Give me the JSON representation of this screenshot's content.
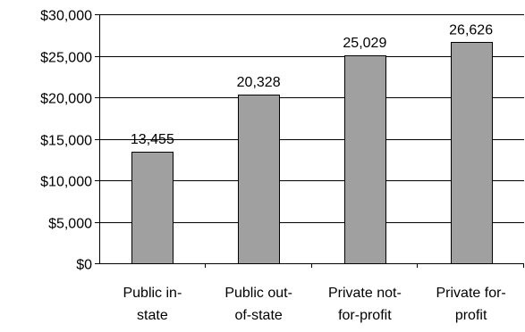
{
  "chart_data": {
    "type": "bar",
    "title": "",
    "xlabel": "",
    "ylabel": "",
    "categories": [
      [
        "Public in-",
        "state"
      ],
      [
        "Public out-",
        "of-state"
      ],
      [
        "Private not-",
        "for-profit"
      ],
      [
        "Private for-",
        "profit"
      ]
    ],
    "values": [
      13455,
      20328,
      25029,
      26626
    ],
    "data_labels": [
      "13,455",
      "20,328",
      "25,029",
      "26,626"
    ],
    "ylim": [
      0,
      30000
    ],
    "yticks": [
      0,
      5000,
      10000,
      15000,
      20000,
      25000,
      30000
    ],
    "ytick_labels": [
      "$0",
      "$5,000",
      "$10,000",
      "$15,000",
      "$20,000",
      "$25,000",
      "$30,000"
    ],
    "grid": true,
    "legend": "none",
    "bar_color": "#a0a0a0",
    "bar_outline_color": "#000000"
  }
}
